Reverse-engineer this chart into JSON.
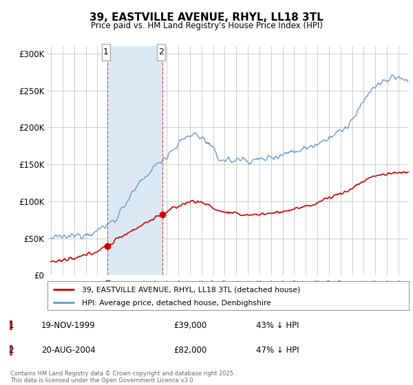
{
  "title": "39, EASTVILLE AVENUE, RHYL, LL18 3TL",
  "subtitle": "Price paid vs. HM Land Registry's House Price Index (HPI)",
  "ylim": [
    0,
    310000
  ],
  "yticks": [
    0,
    50000,
    100000,
    150000,
    200000,
    250000,
    300000
  ],
  "ytick_labels": [
    "£0",
    "£50K",
    "£100K",
    "£150K",
    "£200K",
    "£250K",
    "£300K"
  ],
  "xlim_left": 1994.7,
  "xlim_right": 2025.9,
  "purchase1_date": 1999.89,
  "purchase1_price": 39000,
  "purchase2_date": 2004.64,
  "purchase2_price": 82000,
  "shade_color": "#dce9f5",
  "vline_color": "#d9534f",
  "red_line_color": "#cc0000",
  "blue_line_color": "#6699cc",
  "legend_label_red": "39, EASTVILLE AVENUE, RHYL, LL18 3TL (detached house)",
  "legend_label_blue": "HPI: Average price, detached house, Denbighshire",
  "footer": "Contains HM Land Registry data © Crown copyright and database right 2025.\nThis data is licensed under the Open Government Licence v3.0.",
  "background_color": "#ffffff",
  "grid_color": "#cccccc"
}
